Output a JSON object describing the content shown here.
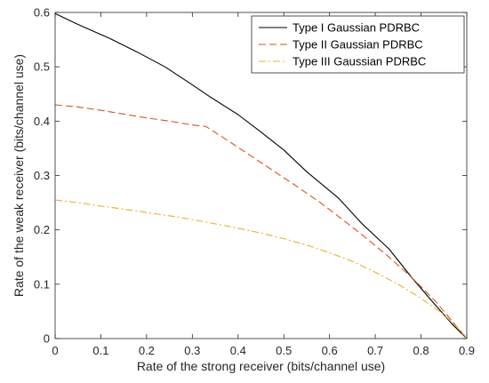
{
  "chart_data": {
    "type": "line",
    "title": "",
    "xlabel": "Rate of the strong receiver (bits/channel use)",
    "ylabel": "Rate of the weak receiver (bits/channel use)",
    "xlim": [
      0,
      0.9
    ],
    "ylim": [
      0,
      0.6
    ],
    "xticks": [
      0,
      0.1,
      0.2,
      0.3,
      0.4,
      0.5,
      0.6,
      0.7,
      0.8,
      0.9
    ],
    "yticks": [
      0,
      0.1,
      0.2,
      0.3,
      0.4,
      0.5,
      0.6
    ],
    "xtick_labels": [
      "0",
      "0.1",
      "0.2",
      "0.3",
      "0.4",
      "0.5",
      "0.6",
      "0.7",
      "0.8",
      "0.9"
    ],
    "ytick_labels": [
      "0",
      "0.1",
      "0.2",
      "0.3",
      "0.4",
      "0.5",
      "0.6"
    ],
    "grid": false,
    "box": true,
    "legend_position": "top-right",
    "series": [
      {
        "name": "Type I Gaussian PDRBC",
        "color": "#000000",
        "dash": "solid",
        "x": [
          0,
          0.05,
          0.12,
          0.18,
          0.24,
          0.3,
          0.34,
          0.4,
          0.45,
          0.5,
          0.55,
          0.62,
          0.67,
          0.73,
          0.78,
          0.83,
          0.87,
          0.9
        ],
        "y": [
          0.598,
          0.578,
          0.552,
          0.527,
          0.5,
          0.467,
          0.444,
          0.412,
          0.38,
          0.347,
          0.307,
          0.258,
          0.212,
          0.165,
          0.112,
          0.063,
          0.025,
          0
        ]
      },
      {
        "name": "Type II Gaussian PDRBC",
        "color": "#D95319",
        "dash": "dashed",
        "x": [
          0,
          0.05,
          0.1,
          0.15,
          0.2,
          0.25,
          0.3,
          0.33,
          0.38,
          0.43,
          0.48,
          0.53,
          0.58,
          0.63,
          0.68,
          0.73,
          0.78,
          0.83,
          0.87,
          0.9
        ],
        "y": [
          0.43,
          0.426,
          0.42,
          0.413,
          0.406,
          0.4,
          0.393,
          0.39,
          0.363,
          0.335,
          0.307,
          0.279,
          0.25,
          0.218,
          0.185,
          0.15,
          0.112,
          0.07,
          0.03,
          0
        ]
      },
      {
        "name": "Type III Gaussian PDRBC",
        "color": "#EDB120",
        "dash": "dashdot",
        "x": [
          0,
          0.05,
          0.1,
          0.15,
          0.2,
          0.25,
          0.3,
          0.35,
          0.4,
          0.45,
          0.5,
          0.55,
          0.6,
          0.65,
          0.7,
          0.75,
          0.8,
          0.85,
          0.88,
          0.9
        ],
        "y": [
          0.255,
          0.25,
          0.244,
          0.238,
          0.232,
          0.226,
          0.219,
          0.211,
          0.203,
          0.194,
          0.184,
          0.172,
          0.158,
          0.142,
          0.122,
          0.1,
          0.074,
          0.044,
          0.02,
          0
        ]
      }
    ]
  }
}
